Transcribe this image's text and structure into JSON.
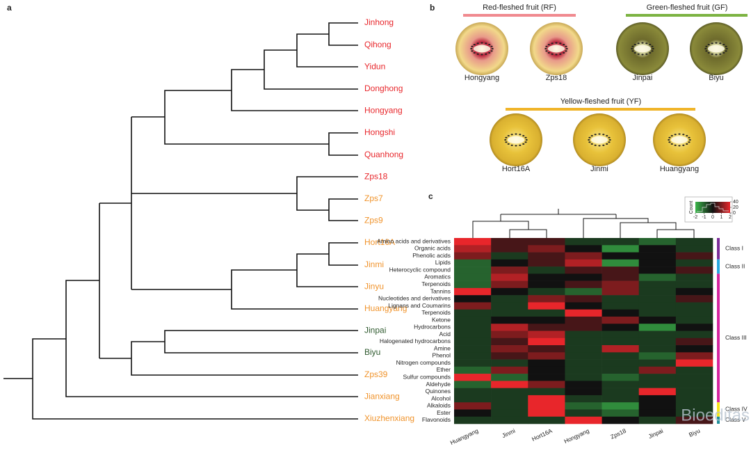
{
  "panel_a": {
    "label": "a",
    "leaves": [
      {
        "label": "Jinhong",
        "color": "#e8262b"
      },
      {
        "label": "Qihong",
        "color": "#e8262b"
      },
      {
        "label": "Yidun",
        "color": "#e8262b"
      },
      {
        "label": "Donghong",
        "color": "#e8262b"
      },
      {
        "label": "Hongyang",
        "color": "#e8262b"
      },
      {
        "label": "Hongshi",
        "color": "#e8262b"
      },
      {
        "label": "Quanhong",
        "color": "#e8262b"
      },
      {
        "label": "Zps18",
        "color": "#e8262b"
      },
      {
        "label": "Zps7",
        "color": "#f0932b"
      },
      {
        "label": "Zps9",
        "color": "#f0932b"
      },
      {
        "label": "Hort16A",
        "color": "#f0932b"
      },
      {
        "label": "Jinmi",
        "color": "#f0932b"
      },
      {
        "label": "Jinyu",
        "color": "#f0932b"
      },
      {
        "label": "Huangyang",
        "color": "#f0932b"
      },
      {
        "label": "Jinpai",
        "color": "#2f5a2f"
      },
      {
        "label": "Biyu",
        "color": "#2f5a2f"
      },
      {
        "label": "Zps39",
        "color": "#f0932b"
      },
      {
        "label": "Jianxiang",
        "color": "#f0932b"
      },
      {
        "label": "Xiuzhenxiang",
        "color": "#f0932b"
      }
    ]
  },
  "panel_b": {
    "label": "b",
    "groups": [
      {
        "title": "Red-fleshed fruit (RF)",
        "color": "#f08a8f",
        "fruits": [
          "Hongyang",
          "Zps18"
        ]
      },
      {
        "title": "Green-fleshed fruit (GF)",
        "color": "#7cb342",
        "fruits": [
          "Jinpai",
          "Biyu"
        ]
      },
      {
        "title": "Yellow-fleshed fruit (YF)",
        "color": "#f0b429",
        "fruits": [
          "Hort16A",
          "Jinmi",
          "Huangyang"
        ]
      }
    ]
  },
  "chart_data": {
    "type": "heatmap",
    "label": "c",
    "columns": [
      "Huangyang",
      "Jinmi",
      "Hort16A",
      "Hongyang",
      "Zps18",
      "Jinpai",
      "Biyu"
    ],
    "rows": [
      "Amino acids and derivatives",
      "Organic acids",
      "Phenolic acids",
      "Lipids",
      "Heterocyclic compound",
      "Aromatics",
      "Terpenoids",
      "Tannins",
      "Nucleotides and derivatives",
      "Lignans and Coumarins",
      "Terpenoids",
      "Ketone",
      "Hydrocarbons",
      "Acid",
      "Halogenated hydrocarbons",
      "Amine",
      "Phenol",
      "Nitrogen compounds",
      "Ether",
      "Sulfur compounds",
      "Aldehyde",
      "Quinones",
      "Alcohol",
      "Alkaloids",
      "Ester",
      "Flavonoids"
    ],
    "values": [
      [
        2,
        0.5,
        0.5,
        -0.5,
        -0.5,
        -1,
        -0.5
      ],
      [
        1.5,
        0.5,
        1,
        0,
        -1.5,
        0,
        -0.5
      ],
      [
        1,
        -0.5,
        0.5,
        1,
        0,
        0,
        0.5
      ],
      [
        -1,
        0,
        0.5,
        1.5,
        -1.5,
        0,
        -0.5
      ],
      [
        -1,
        1,
        -0.5,
        0.5,
        0.5,
        0,
        0.5
      ],
      [
        -1,
        1.5,
        0,
        0,
        0.5,
        -1,
        -0.5
      ],
      [
        -1,
        1,
        0,
        0.5,
        1,
        -0.5,
        -0.5
      ],
      [
        2,
        0,
        -0.5,
        -1,
        1,
        -0.5,
        0
      ],
      [
        0,
        -0.5,
        1,
        0.5,
        -0.5,
        -0.5,
        0.5
      ],
      [
        1,
        -0.5,
        2,
        0,
        -0.5,
        -0.5,
        -0.5
      ],
      [
        -0.5,
        -0.5,
        -0.5,
        2,
        0,
        -0.5,
        -0.5
      ],
      [
        -0.5,
        0,
        0,
        0.5,
        1,
        0,
        -0.5
      ],
      [
        -0.5,
        1.5,
        0.5,
        0.5,
        0,
        -1.5,
        0
      ],
      [
        -0.5,
        1,
        1.5,
        -0.5,
        -0.5,
        -0.5,
        -0.5
      ],
      [
        -0.5,
        0.5,
        2,
        -0.5,
        -0.5,
        -0.5,
        0.5
      ],
      [
        -0.5,
        1,
        0.5,
        -0.5,
        1.5,
        -0.5,
        0
      ],
      [
        -0.5,
        0.5,
        1,
        -0.5,
        -0.5,
        -1,
        1
      ],
      [
        -0.5,
        -0.5,
        0,
        -0.5,
        -0.5,
        -0.5,
        2
      ],
      [
        -1,
        1,
        0,
        -0.5,
        -0.5,
        1,
        -0.5
      ],
      [
        2,
        -1,
        0,
        -0.5,
        -1,
        -0.5,
        -0.5
      ],
      [
        -1,
        2,
        1,
        0,
        -0.5,
        -0.5,
        -0.5
      ],
      [
        -0.5,
        -0.5,
        -0.5,
        0,
        -0.5,
        2,
        -0.5
      ],
      [
        -0.5,
        -0.5,
        2,
        -0.5,
        -0.5,
        0,
        -0.5
      ],
      [
        1,
        -0.5,
        2,
        -1,
        -1.5,
        0,
        -0.5
      ],
      [
        0,
        -0.5,
        2,
        -0.5,
        -1,
        0,
        -0.5
      ],
      [
        -0.5,
        -0.5,
        -0.5,
        2,
        0,
        -0.5,
        0.5
      ]
    ],
    "colors": {
      "low": "#3ab54a",
      "mid": "#111111",
      "high": "#e8262b"
    },
    "colorbar": {
      "lim": [
        -2,
        2
      ],
      "ticks": [
        -2,
        -1,
        0,
        1,
        2
      ],
      "count_label": "Count",
      "count_lim": [
        0,
        40
      ],
      "count_ticks": [
        0,
        20,
        40
      ]
    },
    "classes": [
      {
        "name": "Class I",
        "color": "#7b2d9a",
        "rows": [
          0,
          2
        ]
      },
      {
        "name": "Class II",
        "color": "#27a9e1",
        "rows": [
          3,
          4
        ]
      },
      {
        "name": "Class III",
        "color": "#d6249f",
        "rows": [
          5,
          22
        ]
      },
      {
        "name": "Class IV",
        "color": "#f5e51b",
        "rows": [
          23,
          24
        ]
      },
      {
        "name": "Class V",
        "color": "#1f8f9a",
        "rows": [
          25,
          25
        ]
      }
    ],
    "watermark": "Bioeditas"
  }
}
